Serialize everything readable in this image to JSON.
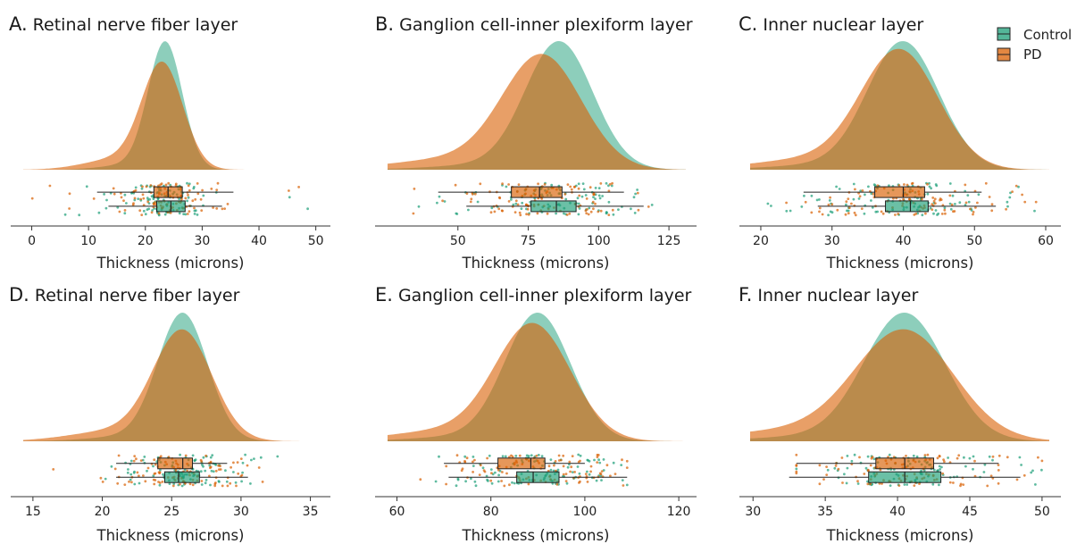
{
  "colors": {
    "control": "#1b9e77",
    "pd": "#d95f02"
  },
  "legend": [
    {
      "name": "Control",
      "color": "#1b9e77"
    },
    {
      "name": "PD",
      "color": "#d95f02"
    }
  ],
  "chart_data": [
    {
      "type": "raincloud",
      "letter": "A.",
      "title": "Retinal nerve fiber layer",
      "xlabel": "Thickness (microns)",
      "xlim": [
        -1.5,
        51
      ],
      "ticks": [
        0,
        10,
        20,
        30,
        40,
        50
      ],
      "series": [
        {
          "name": "Control",
          "density_peak": 23.5,
          "density_sd": 3.0,
          "density_height": 1.0,
          "box": {
            "min": 11.5,
            "q1": 21.5,
            "median": 24,
            "q3": 26.5,
            "max": 35.5
          },
          "points_range": [
            1,
            49
          ]
        },
        {
          "name": "PD",
          "density_peak": 23,
          "density_sd": 3.6,
          "density_height": 0.82,
          "box": {
            "min": 13.5,
            "q1": 22,
            "median": 24.5,
            "q3": 27,
            "max": 33.5
          },
          "points_range": [
            0,
            49
          ]
        }
      ]
    },
    {
      "type": "raincloud",
      "letter": "B.",
      "title": "Ganglion cell-inner plexiform layer",
      "xlabel": "Thickness (microns)",
      "xlim": [
        25,
        131
      ],
      "ticks": [
        50,
        75,
        100,
        125
      ],
      "series": [
        {
          "name": "Control",
          "density_peak": 86,
          "density_sd": 12,
          "density_height": 1.0,
          "box": {
            "min": 43,
            "q1": 69,
            "median": 79,
            "q3": 87,
            "max": 109
          },
          "points_range": [
            33,
            119
          ]
        },
        {
          "name": "PD",
          "density_peak": 80,
          "density_sd": 14,
          "density_height": 0.88,
          "box": {
            "min": 53,
            "q1": 76,
            "median": 85,
            "q3": 92,
            "max": 116
          },
          "points_range": [
            33,
            119
          ]
        }
      ]
    },
    {
      "type": "raincloud",
      "letter": "C.",
      "title": "Inner nuclear layer",
      "xlabel": "Thickness (microns)",
      "xlim": [
        18.5,
        60.5
      ],
      "ticks": [
        20,
        30,
        40,
        50,
        60
      ],
      "series": [
        {
          "name": "Control",
          "density_peak": 40,
          "density_sd": 5,
          "density_height": 1.0,
          "box": {
            "min": 26,
            "q1": 36,
            "median": 40,
            "q3": 43,
            "max": 51
          },
          "points_range": [
            21,
            60
          ]
        },
        {
          "name": "PD",
          "density_peak": 39.5,
          "density_sd": 5.4,
          "density_height": 0.92,
          "box": {
            "min": 28,
            "q1": 37.5,
            "median": 41,
            "q3": 43.5,
            "max": 53
          },
          "points_range": [
            21,
            60
          ]
        }
      ]
    },
    {
      "type": "raincloud",
      "letter": "D.",
      "title": "Retinal nerve fiber layer",
      "xlabel": "Thickness (microns)",
      "xlim": [
        14.3,
        35.8
      ],
      "ticks": [
        15,
        20,
        25,
        30,
        35
      ],
      "series": [
        {
          "name": "Control",
          "density_peak": 25.8,
          "density_sd": 1.8,
          "density_height": 1.0,
          "box": {
            "min": 21,
            "q1": 24,
            "median": 25.8,
            "q3": 26.5,
            "max": 29
          },
          "points_range": [
            20,
            34
          ]
        },
        {
          "name": "PD",
          "density_peak": 25.8,
          "density_sd": 2.1,
          "density_height": 0.85,
          "box": {
            "min": 21,
            "q1": 24.5,
            "median": 25.5,
            "q3": 27,
            "max": 30.5
          },
          "points_range": [
            15,
            32
          ]
        }
      ]
    },
    {
      "type": "raincloud",
      "letter": "E.",
      "title": "Ganglion cell-inner plexiform layer",
      "xlabel": "Thickness (microns)",
      "xlim": [
        58,
        121.5
      ],
      "ticks": [
        60,
        80,
        100,
        120
      ],
      "series": [
        {
          "name": "Control",
          "density_peak": 90,
          "density_sd": 7,
          "density_height": 1.0,
          "box": {
            "min": 70,
            "q1": 81.5,
            "median": 88.5,
            "q3": 91.5,
            "max": 100
          },
          "points_range": [
            65,
            109
          ]
        },
        {
          "name": "PD",
          "density_peak": 89,
          "density_sd": 8,
          "density_height": 0.9,
          "box": {
            "min": 71,
            "q1": 85.5,
            "median": 89,
            "q3": 94.5,
            "max": 109
          },
          "points_range": [
            65,
            109
          ]
        }
      ]
    },
    {
      "type": "raincloud",
      "letter": "F.",
      "title": "Inner nuclear layer",
      "xlabel": "Thickness (microns)",
      "xlim": [
        29.8,
        50.5
      ],
      "ticks": [
        30,
        35,
        40,
        45,
        50
      ],
      "series": [
        {
          "name": "Control",
          "density_peak": 40.5,
          "density_sd": 2.8,
          "density_height": 1.0,
          "box": {
            "min": 33,
            "q1": 38.5,
            "median": 40.5,
            "q3": 42.5,
            "max": 47
          },
          "points_range": [
            33,
            50
          ]
        },
        {
          "name": "PD",
          "density_peak": 40.5,
          "density_sd": 3.4,
          "density_height": 0.85,
          "box": {
            "min": 32.5,
            "q1": 38,
            "median": 40.5,
            "q3": 43,
            "max": 48.5
          },
          "points_range": [
            33,
            50
          ]
        }
      ]
    }
  ]
}
